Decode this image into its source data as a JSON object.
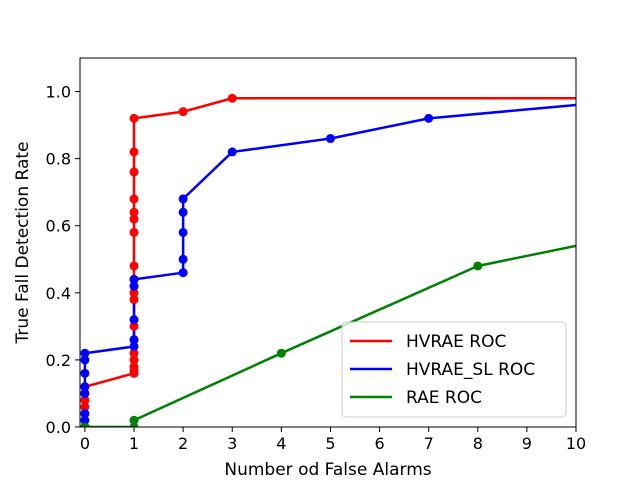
{
  "chart_data": {
    "type": "line",
    "xlabel": "Number od False Alarms",
    "ylabel": "True Fall Detection Rate",
    "xlim": [
      -0.1,
      10
    ],
    "ylim": [
      0,
      1.1
    ],
    "xticks": [
      0,
      1,
      2,
      3,
      4,
      5,
      6,
      7,
      8,
      9,
      10
    ],
    "yticks": [
      0.0,
      0.2,
      0.4,
      0.6,
      0.8,
      1.0
    ],
    "ytick_labels": [
      "0.0",
      "0.2",
      "0.4",
      "0.6",
      "0.8",
      "1.0"
    ],
    "grid": false,
    "legend_position": "lower-right",
    "series": [
      {
        "name": "HVRAE ROC",
        "color": "#ff0000",
        "points": [
          [
            0,
            0.0
          ],
          [
            0,
            0.06
          ],
          [
            0,
            0.08
          ],
          [
            0,
            0.1
          ],
          [
            0,
            0.12
          ],
          [
            1,
            0.16
          ],
          [
            1,
            0.17
          ],
          [
            1,
            0.18
          ],
          [
            1,
            0.2
          ],
          [
            1,
            0.22
          ],
          [
            1,
            0.26
          ],
          [
            1,
            0.3
          ],
          [
            1,
            0.38
          ],
          [
            1,
            0.4
          ],
          [
            1,
            0.44
          ],
          [
            1,
            0.48
          ],
          [
            1,
            0.58
          ],
          [
            1,
            0.62
          ],
          [
            1,
            0.64
          ],
          [
            1,
            0.68
          ],
          [
            1,
            0.76
          ],
          [
            1,
            0.82
          ],
          [
            1,
            0.92
          ],
          [
            2,
            0.94
          ],
          [
            3,
            0.98
          ],
          [
            10,
            0.98
          ]
        ],
        "markers_to_index": 24
      },
      {
        "name": "HVRAE_SL ROC",
        "color": "#0000ff",
        "points": [
          [
            0,
            0.0
          ],
          [
            0,
            0.02
          ],
          [
            0,
            0.04
          ],
          [
            0,
            0.1
          ],
          [
            0,
            0.12
          ],
          [
            0,
            0.16
          ],
          [
            0,
            0.2
          ],
          [
            0,
            0.22
          ],
          [
            1,
            0.24
          ],
          [
            1,
            0.26
          ],
          [
            1,
            0.32
          ],
          [
            1,
            0.42
          ],
          [
            1,
            0.44
          ],
          [
            2,
            0.46
          ],
          [
            2,
            0.5
          ],
          [
            2,
            0.58
          ],
          [
            2,
            0.64
          ],
          [
            2,
            0.68
          ],
          [
            3,
            0.82
          ],
          [
            5,
            0.86
          ],
          [
            7,
            0.92
          ],
          [
            10,
            0.96
          ]
        ],
        "markers_to_index": 20
      },
      {
        "name": "RAE ROC",
        "color": "#008000",
        "points": [
          [
            0,
            0.0
          ],
          [
            1,
            0.0
          ],
          [
            1,
            0.02
          ],
          [
            4,
            0.22
          ],
          [
            8,
            0.48
          ],
          [
            10,
            0.54
          ]
        ],
        "markers_to_index": 4
      }
    ]
  }
}
